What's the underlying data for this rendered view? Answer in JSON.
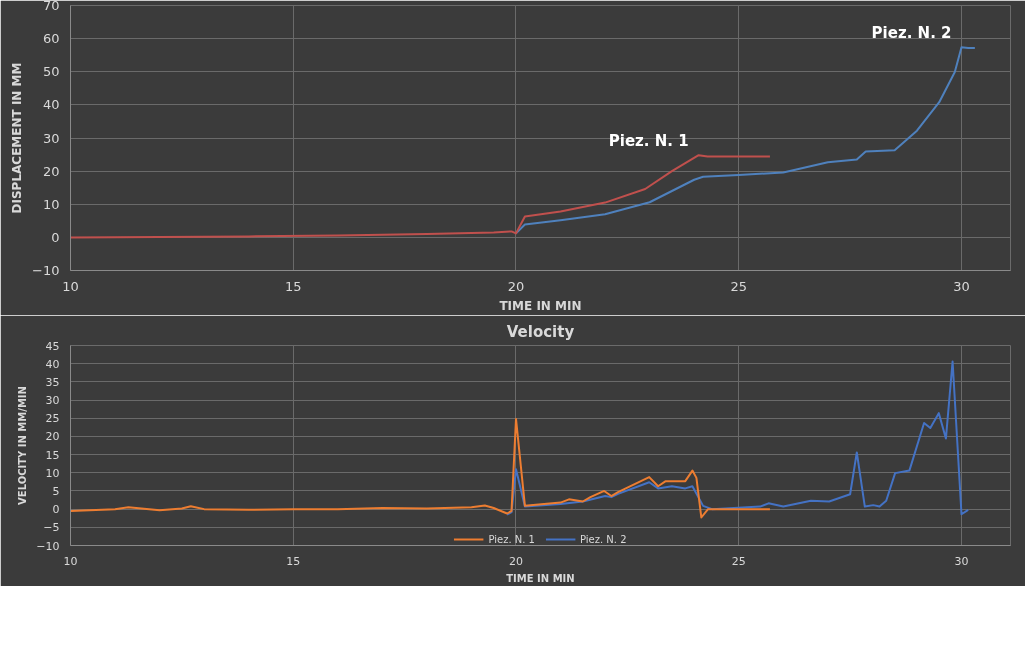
{
  "chart_data": [
    {
      "type": "line",
      "xlabel": "TIME IN MIN",
      "ylabel": "DISPLACEMENT IN MM",
      "xlim": [
        10,
        31.1
      ],
      "ylim": [
        -10,
        70
      ],
      "xticks": [
        10,
        15,
        20,
        25,
        30
      ],
      "yticks": [
        -10,
        0,
        10,
        20,
        30,
        40,
        50,
        60,
        70
      ],
      "grid": true,
      "legend": false,
      "series": [
        {
          "name": "Piez. N. 1",
          "color": "#c0504d",
          "x": [
            10,
            12,
            14,
            16,
            18,
            19.5,
            19.9,
            20.0,
            20.2,
            21,
            21.5,
            22,
            22.9,
            23.5,
            24.1,
            24.3,
            25.7
          ],
          "values": [
            0,
            0.1,
            0.3,
            0.6,
            1.0,
            1.5,
            1.8,
            1.2,
            6.3,
            7.8,
            9.2,
            10.5,
            14.6,
            20,
            24.8,
            24.4,
            24.4
          ]
        },
        {
          "name": "Piez. N. 2",
          "color": "#4f81bd",
          "x": [
            20.0,
            20.2,
            21,
            22,
            23,
            24,
            24.2,
            25,
            26,
            27,
            27.65,
            27.85,
            28.5,
            29,
            29.5,
            29.85,
            30.0,
            30.15,
            30.3
          ],
          "values": [
            1.2,
            3.9,
            5.2,
            7,
            10.6,
            17.4,
            18.3,
            18.8,
            19.6,
            22.7,
            23.5,
            25.9,
            26.3,
            32.2,
            40.8,
            49.9,
            57.4,
            57.2,
            57.2
          ]
        }
      ]
    },
    {
      "type": "line",
      "title": "Velocity",
      "xlabel": "TIME IN MIN",
      "ylabel": "VELOCITY IN MM/MIN",
      "xlim": [
        10,
        31.1
      ],
      "ylim": [
        -10,
        45
      ],
      "xticks": [
        10,
        15,
        20,
        25,
        30
      ],
      "yticks": [
        -10,
        -5,
        0,
        5,
        10,
        15,
        20,
        25,
        30,
        35,
        40,
        45
      ],
      "grid": true,
      "legend": "bottom",
      "series": [
        {
          "name": "Piez. N. 1",
          "color": "#ed7d31",
          "x": [
            10,
            11,
            11.3,
            12,
            12.5,
            12.7,
            13,
            14,
            15,
            16,
            17,
            18,
            19,
            19.3,
            19.5,
            19.8,
            19.9,
            20.0,
            20.2,
            21,
            21.19,
            21.5,
            21.67,
            21.98,
            22.14,
            22.29,
            22.99,
            23.19,
            23.36,
            23.8,
            23.96,
            24.05,
            24.16,
            24.31,
            25.7
          ],
          "values": [
            -0.5,
            0,
            0.5,
            -0.3,
            0.2,
            0.8,
            0,
            -0.2,
            0,
            0,
            0.3,
            0.2,
            0.5,
            1,
            0.3,
            -1.2,
            -0.5,
            24.8,
            0.9,
            1.8,
            2.7,
            2.1,
            3.3,
            5.0,
            3.6,
            4.7,
            8.8,
            6.3,
            7.7,
            7.7,
            10.6,
            8.6,
            -2.3,
            0,
            0
          ]
        },
        {
          "name": "Piez. N. 2",
          "color": "#4472c4",
          "x": [
            19.8,
            19.9,
            20.0,
            20.2,
            21,
            21.5,
            22,
            22.14,
            22.29,
            22.99,
            23.19,
            23.5,
            23.8,
            23.96,
            24.2,
            24.4,
            25.48,
            25.67,
            26.0,
            26.62,
            27.03,
            27.5,
            27.65,
            27.83,
            28.02,
            28.16,
            28.31,
            28.51,
            28.83,
            29.16,
            29.3,
            29.49,
            29.65,
            29.8,
            30.0,
            30.15
          ],
          "values": [
            -1.5,
            -0.8,
            11.0,
            0.7,
            1.4,
            2.1,
            3.6,
            3.3,
            4.2,
            7.4,
            5.7,
            6.3,
            5.7,
            6.3,
            0.9,
            0,
            0.7,
            1.6,
            0.7,
            2.3,
            2.1,
            4.1,
            15.6,
            0.7,
            1.1,
            0.7,
            2.3,
            9.9,
            10.6,
            23.7,
            22.3,
            26.4,
            19.4,
            40.6,
            -1.4,
            -0.2
          ]
        }
      ]
    }
  ]
}
